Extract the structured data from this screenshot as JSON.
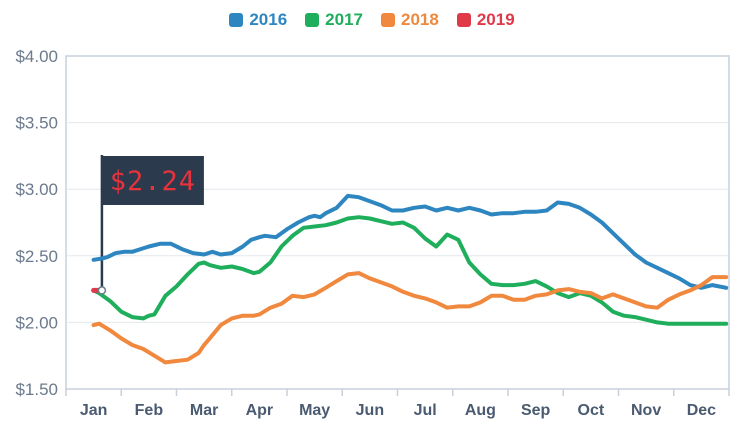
{
  "chart_data": {
    "type": "line",
    "categories": [
      "Jan",
      "Feb",
      "Mar",
      "Apr",
      "May",
      "Jun",
      "Jul",
      "Aug",
      "Sep",
      "Oct",
      "Nov",
      "Dec"
    ],
    "y_ticks": [
      "$4.00",
      "$3.50",
      "$3.00",
      "$2.50",
      "$2.00",
      "$1.50"
    ],
    "ylim": [
      1.5,
      4.0
    ],
    "grid": true,
    "legend_position": "top-center",
    "flag_label": "$2.24",
    "series": [
      {
        "name": "2016",
        "color": "#2e86c1",
        "x": [
          0,
          0.15,
          0.25,
          0.4,
          0.55,
          0.7,
          0.85,
          1.0,
          1.2,
          1.4,
          1.6,
          1.8,
          2.0,
          2.15,
          2.3,
          2.5,
          2.7,
          2.85,
          3.0,
          3.1,
          3.3,
          3.5,
          3.7,
          3.9,
          4.0,
          4.1,
          4.2,
          4.4,
          4.6,
          4.8,
          5.0,
          5.2,
          5.4,
          5.6,
          5.8,
          6.0,
          6.2,
          6.4,
          6.6,
          6.8,
          7.0,
          7.2,
          7.4,
          7.6,
          7.8,
          8.0,
          8.2,
          8.4,
          8.6,
          8.8,
          9.0,
          9.2,
          9.4,
          9.6,
          9.8,
          10.0,
          10.2,
          10.4,
          10.6,
          10.8,
          11.0,
          11.2,
          11.45
        ],
        "y": [
          2.47,
          2.48,
          2.49,
          2.52,
          2.53,
          2.53,
          2.55,
          2.57,
          2.59,
          2.59,
          2.55,
          2.52,
          2.51,
          2.53,
          2.51,
          2.52,
          2.57,
          2.62,
          2.64,
          2.65,
          2.64,
          2.7,
          2.75,
          2.79,
          2.8,
          2.79,
          2.82,
          2.86,
          2.95,
          2.94,
          2.91,
          2.88,
          2.84,
          2.84,
          2.86,
          2.87,
          2.84,
          2.86,
          2.84,
          2.86,
          2.84,
          2.81,
          2.82,
          2.82,
          2.83,
          2.83,
          2.84,
          2.9,
          2.89,
          2.86,
          2.81,
          2.75,
          2.67,
          2.59,
          2.51,
          2.45,
          2.41,
          2.37,
          2.33,
          2.28,
          2.26,
          2.28,
          2.26
        ]
      },
      {
        "name": "2017",
        "color": "#1fae5b",
        "x": [
          0,
          0.1,
          0.3,
          0.5,
          0.7,
          0.9,
          1.0,
          1.1,
          1.3,
          1.5,
          1.7,
          1.9,
          2.0,
          2.1,
          2.3,
          2.5,
          2.7,
          2.9,
          3.0,
          3.2,
          3.4,
          3.6,
          3.8,
          4.0,
          4.2,
          4.4,
          4.6,
          4.8,
          5.0,
          5.2,
          5.4,
          5.6,
          5.8,
          6.0,
          6.2,
          6.4,
          6.6,
          6.8,
          7.0,
          7.2,
          7.4,
          7.6,
          7.8,
          8.0,
          8.2,
          8.4,
          8.6,
          8.8,
          9.0,
          9.2,
          9.4,
          9.6,
          9.8,
          10.0,
          10.2,
          10.4,
          10.6,
          10.8,
          11.0,
          11.2,
          11.45
        ],
        "y": [
          2.24,
          2.22,
          2.16,
          2.08,
          2.04,
          2.03,
          2.05,
          2.06,
          2.2,
          2.27,
          2.36,
          2.44,
          2.45,
          2.43,
          2.41,
          2.42,
          2.4,
          2.37,
          2.38,
          2.45,
          2.57,
          2.65,
          2.71,
          2.72,
          2.73,
          2.75,
          2.78,
          2.79,
          2.78,
          2.76,
          2.74,
          2.75,
          2.71,
          2.63,
          2.57,
          2.66,
          2.62,
          2.45,
          2.36,
          2.29,
          2.28,
          2.28,
          2.29,
          2.31,
          2.27,
          2.22,
          2.19,
          2.22,
          2.2,
          2.15,
          2.08,
          2.05,
          2.04,
          2.02,
          2.0,
          1.99,
          1.99,
          1.99,
          1.99,
          1.99,
          1.99
        ]
      },
      {
        "name": "2018",
        "color": "#f0883e",
        "x": [
          0,
          0.1,
          0.3,
          0.5,
          0.7,
          0.9,
          1.1,
          1.3,
          1.5,
          1.7,
          1.9,
          2.0,
          2.1,
          2.3,
          2.5,
          2.7,
          2.9,
          3.0,
          3.2,
          3.4,
          3.6,
          3.8,
          4.0,
          4.2,
          4.4,
          4.6,
          4.8,
          5.0,
          5.2,
          5.4,
          5.6,
          5.8,
          6.0,
          6.2,
          6.4,
          6.6,
          6.8,
          7.0,
          7.2,
          7.4,
          7.6,
          7.8,
          8.0,
          8.2,
          8.4,
          8.6,
          8.8,
          9.0,
          9.2,
          9.4,
          9.6,
          9.8,
          10.0,
          10.2,
          10.4,
          10.6,
          10.8,
          11.0,
          11.2,
          11.45
        ],
        "y": [
          1.98,
          1.99,
          1.94,
          1.88,
          1.83,
          1.8,
          1.75,
          1.7,
          1.71,
          1.72,
          1.77,
          1.83,
          1.88,
          1.98,
          2.03,
          2.05,
          2.05,
          2.06,
          2.11,
          2.14,
          2.2,
          2.19,
          2.21,
          2.26,
          2.31,
          2.36,
          2.37,
          2.33,
          2.3,
          2.27,
          2.23,
          2.2,
          2.18,
          2.15,
          2.11,
          2.12,
          2.12,
          2.15,
          2.2,
          2.2,
          2.17,
          2.17,
          2.2,
          2.21,
          2.24,
          2.25,
          2.23,
          2.22,
          2.18,
          2.21,
          2.18,
          2.15,
          2.12,
          2.11,
          2.17,
          2.21,
          2.24,
          2.28,
          2.34,
          2.34
        ]
      },
      {
        "name": "2019",
        "color": "#e0394a",
        "x": [
          0,
          0.15
        ],
        "y": [
          2.24,
          2.24
        ]
      }
    ]
  }
}
